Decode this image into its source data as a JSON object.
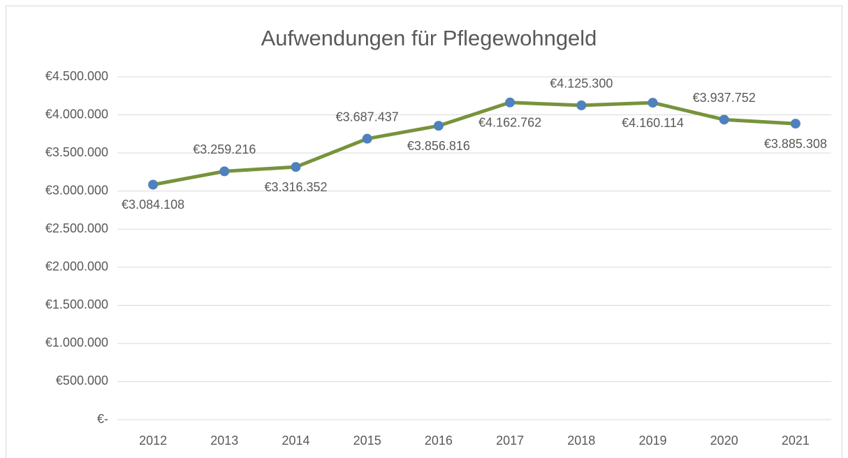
{
  "chart_data": {
    "type": "line",
    "title": "Aufwendungen für Pflegewohngeld",
    "categories": [
      "2012",
      "2013",
      "2014",
      "2015",
      "2016",
      "2017",
      "2018",
      "2019",
      "2020",
      "2021"
    ],
    "values": [
      3084108,
      3259216,
      3316352,
      3687437,
      3856816,
      4162762,
      4125300,
      4160114,
      3937752,
      3885308
    ],
    "value_labels": [
      "€3.084.108",
      "€3.259.216",
      "€3.316.352",
      "€3.687.437",
      "€3.856.816",
      "€4.162.762",
      "€4.125.300",
      "€4.160.114",
      "€3.937.752",
      "€3.885.308"
    ],
    "color": "#77933c",
    "marker_color": "#4f81bd",
    "ylim": [
      0,
      4500000
    ],
    "yticks": [
      {
        "value": 0,
        "label": "€-"
      },
      {
        "value": 500000,
        "label": "€500.000"
      },
      {
        "value": 1000000,
        "label": "€1.000.000"
      },
      {
        "value": 1500000,
        "label": "€1.500.000"
      },
      {
        "value": 2000000,
        "label": "€2.000.000"
      },
      {
        "value": 2500000,
        "label": "€2.500.000"
      },
      {
        "value": 3000000,
        "label": "€3.000.000"
      },
      {
        "value": 3500000,
        "label": "€3.500.000"
      },
      {
        "value": 4000000,
        "label": "€4.000.000"
      },
      {
        "value": 4500000,
        "label": "€4.500.000"
      }
    ],
    "grid": true
  }
}
